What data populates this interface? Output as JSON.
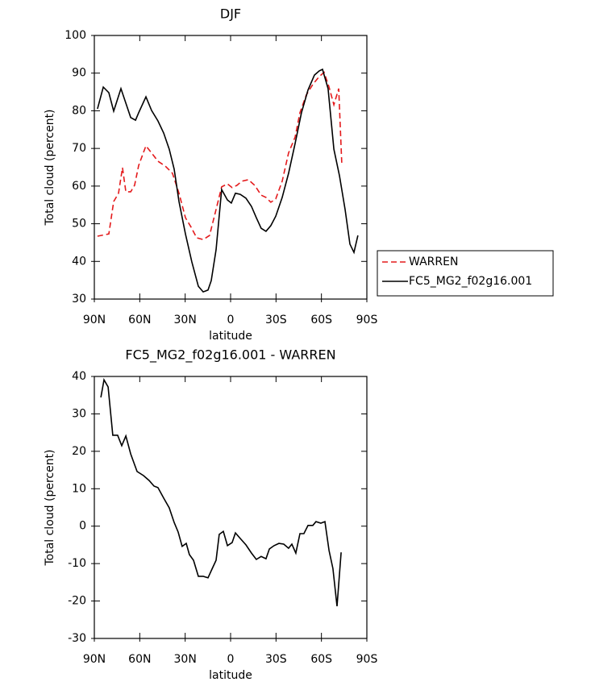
{
  "chart_data": [
    {
      "type": "line",
      "title": "DJF",
      "xlabel": "latitude",
      "ylabel": "Total cloud (percent)",
      "xlim": [
        90,
        -90
      ],
      "xticks": [
        {
          "value": 90,
          "label": "90N"
        },
        {
          "value": 60,
          "label": "60N"
        },
        {
          "value": 30,
          "label": "30N"
        },
        0,
        {
          "value": -30,
          "label": "30S"
        },
        {
          "value": -60,
          "label": "60S"
        },
        {
          "value": -90,
          "label": "90S"
        }
      ],
      "ylim": [
        30,
        100
      ],
      "yticks": [
        30,
        40,
        50,
        60,
        70,
        80,
        90,
        100
      ],
      "legend": "right",
      "series": [
        {
          "name": "WARREN",
          "color": "#e41a1c",
          "line_style": "dashed",
          "x": [
            87.9,
            80.4,
            77.2,
            74,
            71.4,
            69.2,
            66,
            63.4,
            60.7,
            55.9,
            52.2,
            48,
            43.1,
            38.4,
            34.1,
            29.8,
            26.1,
            22.4,
            18.1,
            13.9,
            9.6,
            5.9,
            2.1,
            -1,
            -4.2,
            -7.4,
            -11.7,
            -15.9,
            -20.2,
            -23.4,
            -26.6,
            -29.8,
            -34.1,
            -38.3,
            -42.6,
            -45.8,
            -50,
            -54.3,
            -58.6,
            -61.8,
            -65,
            -68.2,
            -71.4,
            -73.5
          ],
          "values": [
            46.7,
            47.3,
            55.9,
            58.1,
            64.9,
            58.5,
            58.5,
            60.2,
            65.5,
            70.7,
            68.8,
            66.6,
            65.3,
            63.4,
            58.1,
            51.6,
            49.1,
            46.3,
            45.8,
            46.9,
            53.8,
            59.8,
            60.6,
            59.6,
            60.2,
            61.3,
            61.7,
            60.2,
            57.6,
            57,
            55.7,
            56.6,
            61.3,
            68.8,
            73,
            79.5,
            84.2,
            87,
            89.1,
            90.2,
            86.3,
            81.6,
            85.9,
            65.5
          ]
        },
        {
          "name": "FC5_MG2_f02g16.001",
          "color": "#000000",
          "line_style": "solid",
          "x": [
            87.9,
            84.1,
            80.4,
            77.2,
            72.4,
            66,
            62.8,
            60.7,
            55.9,
            52.2,
            48,
            44.2,
            40.5,
            37.3,
            34.1,
            29.8,
            25.6,
            21.3,
            18.1,
            14.9,
            12.8,
            9.6,
            5.9,
            2.1,
            -0.5,
            -3.2,
            -6.4,
            -10.1,
            -13.8,
            -17,
            -20.2,
            -23.4,
            -26.6,
            -29.8,
            -34.1,
            -38.3,
            -42.6,
            -46.8,
            -51.1,
            -55.4,
            -58.6,
            -60.7,
            -64.4,
            -68.2,
            -71.9,
            -75.6,
            -78.8,
            -81.5,
            -84.1
          ],
          "values": [
            80.5,
            86.3,
            84.8,
            79.9,
            85.9,
            78.2,
            77.5,
            79.5,
            83.7,
            80.1,
            77.3,
            74.1,
            69.8,
            64.5,
            55.9,
            47.3,
            39.9,
            33.4,
            31.9,
            32.4,
            34.9,
            43.1,
            59.1,
            56.3,
            55.5,
            58.1,
            57.8,
            56.8,
            54.6,
            51.6,
            48.8,
            48,
            49.5,
            52,
            57,
            63.4,
            71.3,
            79.5,
            85.5,
            89.5,
            90.6,
            91,
            85.9,
            69.8,
            62.8,
            53.8,
            44.6,
            42.4,
            46.9
          ]
        }
      ]
    },
    {
      "type": "line",
      "title": "FC5_MG2_f02g16.001 - WARREN",
      "xlabel": "latitude",
      "ylabel": "Total cloud (percent)",
      "xlim": [
        90,
        -90
      ],
      "xticks": [
        {
          "value": 90,
          "label": "90N"
        },
        {
          "value": 60,
          "label": "60N"
        },
        {
          "value": 30,
          "label": "30N"
        },
        0,
        {
          "value": -30,
          "label": "30S"
        },
        {
          "value": -60,
          "label": "60S"
        },
        {
          "value": -90,
          "label": "90S"
        }
      ],
      "ylim": [
        -30,
        40
      ],
      "yticks": [
        -30,
        -20,
        -10,
        0,
        10,
        20,
        30,
        40
      ],
      "series": [
        {
          "color": "#000000",
          "line_style": "solid",
          "x": [
            85.7,
            83.6,
            80.9,
            77.8,
            74.6,
            71.9,
            69.2,
            66,
            61.8,
            57.5,
            53.8,
            50.6,
            48,
            44.2,
            40.5,
            37.3,
            34.6,
            32,
            29.3,
            27.2,
            24.5,
            21.3,
            18.1,
            14.9,
            12.8,
            9.6,
            7.5,
            4.8,
            2.1,
            -1,
            -3.2,
            -6.4,
            -10.1,
            -13.8,
            -17,
            -20.2,
            -23.4,
            -25.6,
            -28.7,
            -31.9,
            -35.1,
            -38.3,
            -40.5,
            -43.1,
            -45.8,
            -48.4,
            -51.1,
            -54.3,
            -56.4,
            -59.6,
            -62.3,
            -65,
            -67.6,
            -70.3,
            -73
          ],
          "values": [
            34.4,
            39.1,
            37.2,
            24.3,
            24.3,
            21.5,
            24.1,
            19.3,
            14.6,
            13.5,
            12.2,
            10.7,
            10.3,
            7.5,
            4.9,
            1,
            -1.6,
            -5.4,
            -4.6,
            -7.6,
            -9.1,
            -13.4,
            -13.4,
            -13.8,
            -11.9,
            -9.1,
            -2.2,
            -1.4,
            -5.2,
            -4.4,
            -1.8,
            -3.3,
            -5,
            -7.2,
            -8.9,
            -8.1,
            -8.7,
            -6.1,
            -5.2,
            -4.6,
            -4.8,
            -5.9,
            -4.8,
            -7.2,
            -2,
            -2,
            0.2,
            0.2,
            1.2,
            0.8,
            1.2,
            -6.5,
            -11.3,
            -21.4,
            -7
          ]
        }
      ]
    }
  ]
}
